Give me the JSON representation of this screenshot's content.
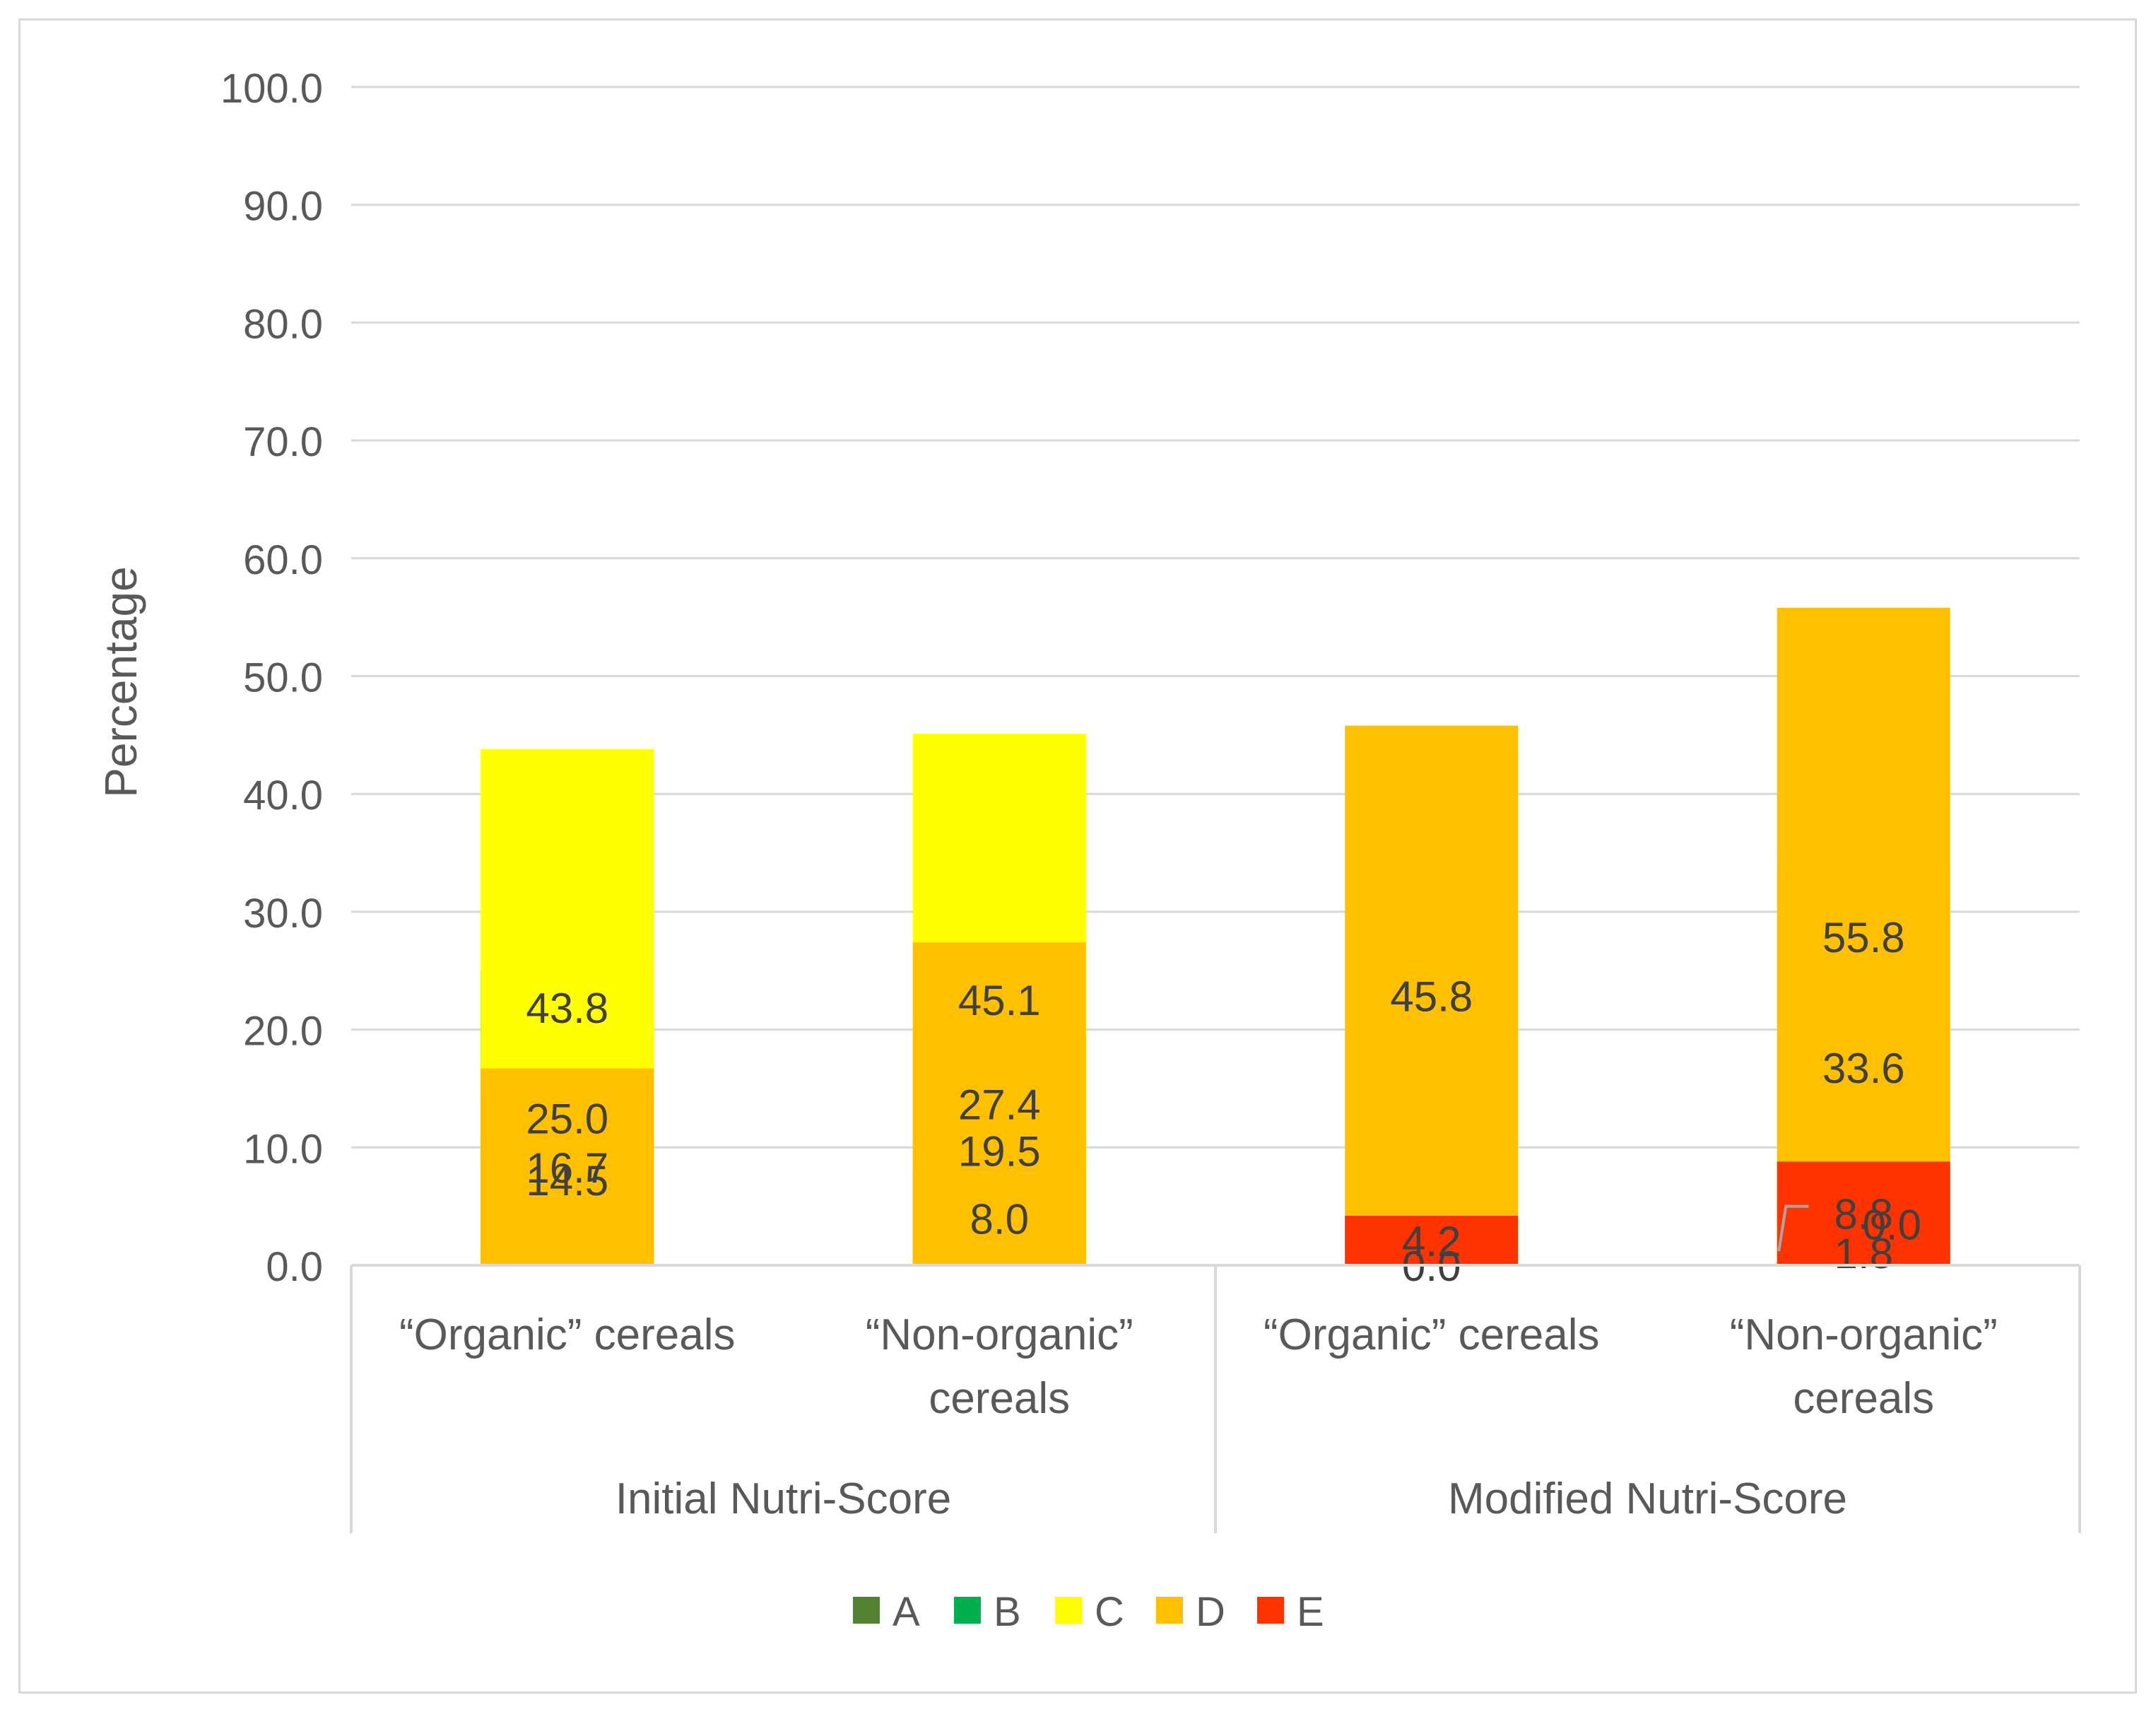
{
  "chart_data": {
    "type": "bar",
    "stacked": true,
    "title": "",
    "xlabel": "",
    "ylabel": "Percentage",
    "ylim": [
      0,
      100
    ],
    "yticks": [
      "0.0",
      "10.0",
      "20.0",
      "30.0",
      "40.0",
      "50.0",
      "60.0",
      "70.0",
      "80.0",
      "90.0",
      "100.0"
    ],
    "grid": true,
    "legend_position": "bottom",
    "groups": [
      {
        "label": "Initial Nutri-Score",
        "categories": [
          0,
          1
        ]
      },
      {
        "label": "Modified Nutri-Score",
        "categories": [
          2,
          3
        ]
      }
    ],
    "categories": [
      [
        "“Organic” cereals"
      ],
      [
        "“Non-organic”",
        "cereals"
      ],
      [
        "“Organic” cereals"
      ],
      [
        "“Non-organic”",
        "cereals"
      ]
    ],
    "series": [
      {
        "name": "A",
        "color": "#548235",
        "values": [
          14.5,
          8.0,
          0.0,
          1.8
        ],
        "labels": [
          "14.5",
          "8.0",
          "0.0",
          "1.8"
        ]
      },
      {
        "name": "B",
        "color": "#00b050",
        "values": [
          25.0,
          19.5,
          4.2,
          0.0
        ],
        "labels": [
          "25.0",
          "19.5",
          "4.2",
          "0.0"
        ]
      },
      {
        "name": "C",
        "color": "#ffff00",
        "values": [
          43.8,
          45.1,
          45.8,
          33.6
        ],
        "labels": [
          "43.8",
          "45.1",
          "45.8",
          "33.6"
        ]
      },
      {
        "name": "D",
        "color": "#ffc000",
        "values": [
          16.7,
          27.4,
          45.8,
          55.8
        ],
        "labels": [
          "16.7",
          "27.4",
          "45.8",
          "55.8"
        ]
      },
      {
        "name": "E",
        "color": "#ff3300",
        "values": [
          0.0,
          0.0,
          4.2,
          8.8
        ],
        "labels": [
          "",
          "",
          "4.2",
          "8.8"
        ]
      }
    ]
  }
}
